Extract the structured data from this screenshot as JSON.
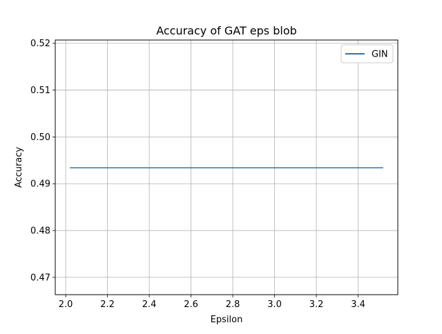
{
  "chart_data": {
    "type": "line",
    "title": "Accuracy of GAT eps blob",
    "xlabel": "Epsilon",
    "ylabel": "Accuracy",
    "xlim": [
      1.95,
      3.59
    ],
    "ylim": [
      0.4663,
      0.5207
    ],
    "xticks": [
      2.0,
      2.2,
      2.4,
      2.6,
      2.8,
      3.0,
      3.2,
      3.4
    ],
    "xtick_labels": [
      "2.0",
      "2.2",
      "2.4",
      "2.6",
      "2.8",
      "3.0",
      "3.2",
      "3.4"
    ],
    "yticks": [
      0.47,
      0.48,
      0.49,
      0.5,
      0.51,
      0.52
    ],
    "ytick_labels": [
      "0.47",
      "0.48",
      "0.49",
      "0.50",
      "0.51",
      "0.52"
    ],
    "grid": true,
    "legend_position": "top-right",
    "series": [
      {
        "name": "GIN",
        "color": "#1f77b4",
        "x": [
          2.02,
          3.52
        ],
        "y": [
          0.4934,
          0.4934
        ]
      }
    ]
  }
}
